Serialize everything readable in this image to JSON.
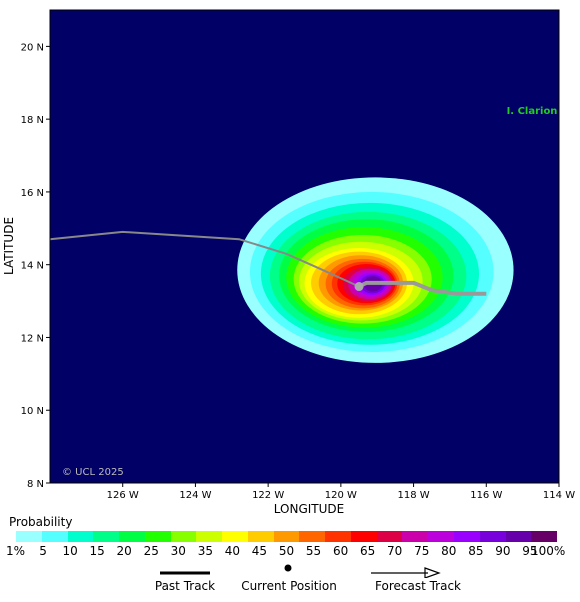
{
  "map": {
    "x_axis_title": "LONGITUDE",
    "y_axis_title": "LATITUDE",
    "x_ticks": [
      {
        "lon": -126,
        "label": "126 W"
      },
      {
        "lon": -124,
        "label": "124 W"
      },
      {
        "lon": -122,
        "label": "122 W"
      },
      {
        "lon": -120,
        "label": "120 W"
      },
      {
        "lon": -118,
        "label": "118 W"
      },
      {
        "lon": -116,
        "label": "116 W"
      },
      {
        "lon": -114,
        "label": "114 W"
      }
    ],
    "y_ticks": [
      {
        "lat": 8,
        "label": "8 N"
      },
      {
        "lat": 10,
        "label": "10 N"
      },
      {
        "lat": 12,
        "label": "12 N"
      },
      {
        "lat": 14,
        "label": "14 N"
      },
      {
        "lat": 16,
        "label": "16 N"
      },
      {
        "lat": 18,
        "label": "18 N"
      },
      {
        "lat": 20,
        "label": "20 N"
      }
    ],
    "lon_range": [
      -128,
      -114
    ],
    "lat_range": [
      8,
      21
    ],
    "background_color": "#000066",
    "island_label": "I. Clarion",
    "island_color": "#22cc22",
    "copyright": "© UCL 2025",
    "past_track": [
      [
        -128,
        14.7
      ],
      [
        -126,
        14.9
      ],
      [
        -122.8,
        14.7
      ],
      [
        -121.5,
        14.3
      ],
      [
        -120.6,
        13.9
      ],
      [
        -119.5,
        13.4
      ]
    ],
    "forecast_track": [
      [
        -119.5,
        13.4
      ],
      [
        -119.3,
        13.5
      ],
      [
        -118,
        13.5
      ],
      [
        -117.5,
        13.3
      ],
      [
        -116.8,
        13.2
      ],
      [
        -116,
        13.2
      ]
    ],
    "current_position": [
      -119.5,
      13.4
    ],
    "probability_field": {
      "center": [
        -119.5,
        13.5
      ],
      "rings": [
        {
          "rx": 3.8,
          "ry": 2.55,
          "dx": 0.45,
          "dy": 0.35
        },
        {
          "rx": 3.35,
          "ry": 2.2,
          "dx": 0.35,
          "dy": 0.3
        },
        {
          "rx": 3.0,
          "ry": 1.95,
          "dx": 0.3,
          "dy": 0.25
        },
        {
          "rx": 2.7,
          "ry": 1.75,
          "dx": 0.25,
          "dy": 0.2
        },
        {
          "rx": 2.4,
          "ry": 1.55,
          "dx": 0.2,
          "dy": 0.2
        },
        {
          "rx": 2.15,
          "ry": 1.38,
          "dx": 0.15,
          "dy": 0.15
        },
        {
          "rx": 1.9,
          "ry": 1.22,
          "dx": 0.1,
          "dy": 0.1
        },
        {
          "rx": 1.7,
          "ry": 1.08,
          "dx": 0.05,
          "dy": 0.05
        },
        {
          "rx": 1.5,
          "ry": 0.96,
          "dx": 0.0,
          "dy": 0.0
        },
        {
          "rx": 1.32,
          "ry": 0.86,
          "dx": 0.0,
          "dy": 0.0
        },
        {
          "rx": 1.16,
          "ry": 0.76,
          "dx": 0.05,
          "dy": 0.0
        },
        {
          "rx": 1.02,
          "ry": 0.68,
          "dx": 0.1,
          "dy": -0.02
        },
        {
          "rx": 0.9,
          "ry": 0.6,
          "dx": 0.15,
          "dy": -0.02
        },
        {
          "rx": 0.8,
          "ry": 0.54,
          "dx": 0.2,
          "dy": -0.02
        },
        {
          "rx": 0.7,
          "ry": 0.48,
          "dx": 0.25,
          "dy": -0.03
        },
        {
          "rx": 0.6,
          "ry": 0.42,
          "dx": 0.3,
          "dy": -0.03
        },
        {
          "rx": 0.5,
          "ry": 0.36,
          "dx": 0.32,
          "dy": -0.03
        },
        {
          "rx": 0.42,
          "ry": 0.31,
          "dx": 0.35,
          "dy": -0.03
        },
        {
          "rx": 0.34,
          "ry": 0.26,
          "dx": 0.37,
          "dy": -0.03
        },
        {
          "rx": 0.26,
          "ry": 0.21,
          "dx": 0.38,
          "dy": -0.03
        }
      ]
    }
  },
  "legend": {
    "title": "Probability",
    "colors": [
      "#99ffff",
      "#55ffff",
      "#00ffcc",
      "#00ff88",
      "#00ff44",
      "#22ff00",
      "#88ff00",
      "#ccff00",
      "#ffff00",
      "#ffcc00",
      "#ff9900",
      "#ff6600",
      "#ff3300",
      "#ff0000",
      "#dd0044",
      "#cc00aa",
      "#bb00dd",
      "#9900ff",
      "#7700dd",
      "#6600aa",
      "#660066"
    ],
    "labels": [
      "1%",
      "5",
      "10",
      "15",
      "20",
      "25",
      "30",
      "35",
      "40",
      "45",
      "50",
      "55",
      "60",
      "65",
      "70",
      "75",
      "80",
      "85",
      "90",
      "95",
      "100%"
    ],
    "past_track_label": "Past Track",
    "current_position_label": "Current Position",
    "forecast_track_label": "Forecast Track"
  }
}
